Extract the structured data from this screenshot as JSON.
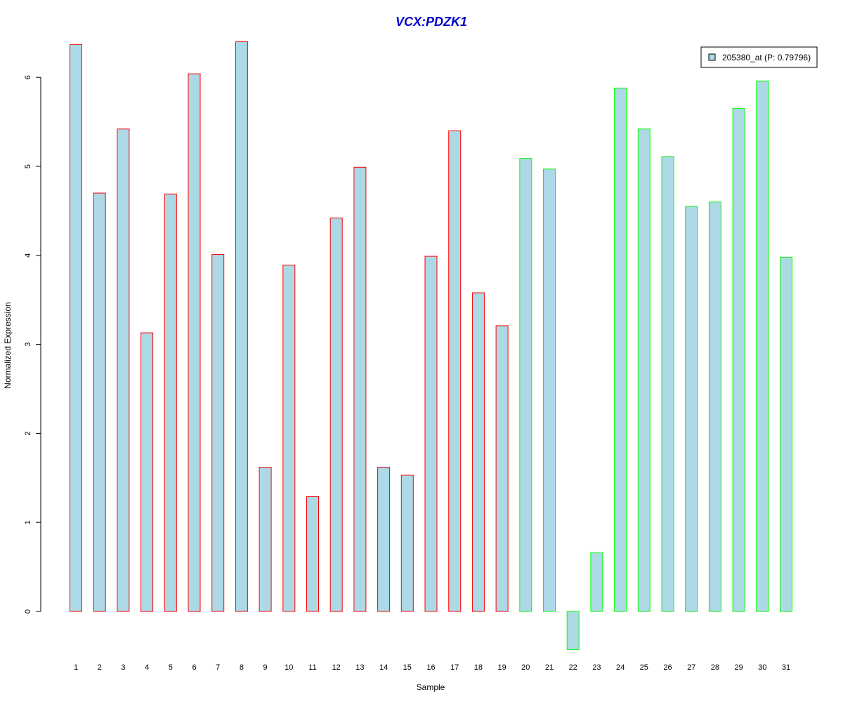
{
  "chart_data": {
    "type": "bar",
    "title": "VCX:PDZK1",
    "xlabel": "Sample",
    "ylabel": "Normalized Expression",
    "ylim": [
      -0.6,
      6.5
    ],
    "yticks": [
      "0",
      "1",
      "2",
      "3",
      "4",
      "5",
      "6"
    ],
    "categories": [
      "1",
      "2",
      "3",
      "4",
      "5",
      "6",
      "7",
      "8",
      "9",
      "10",
      "11",
      "12",
      "13",
      "14",
      "15",
      "16",
      "17",
      "18",
      "19",
      "20",
      "21",
      "22",
      "23",
      "24",
      "25",
      "26",
      "27",
      "28",
      "29",
      "30",
      "31"
    ],
    "series": [
      {
        "name": "205380_at (P: 0.79796)",
        "values": [
          6.37,
          4.7,
          5.42,
          3.13,
          4.69,
          6.04,
          4.01,
          6.4,
          1.62,
          3.89,
          1.29,
          4.42,
          4.99,
          1.62,
          1.53,
          3.99,
          5.4,
          3.58,
          3.21,
          5.09,
          4.97,
          -0.43,
          0.66,
          5.88,
          5.42,
          5.11,
          4.55,
          4.6,
          5.65,
          5.96,
          3.98
        ]
      }
    ],
    "groups": [
      {
        "range": [
          1,
          19
        ],
        "border_color": "#ff0000"
      },
      {
        "range": [
          20,
          31
        ],
        "border_color": "#00ff00"
      }
    ],
    "fill_color": "#add8e6",
    "legend": {
      "label": "205380_at (P: 0.79796)",
      "position": "top-right"
    },
    "grid": false
  }
}
